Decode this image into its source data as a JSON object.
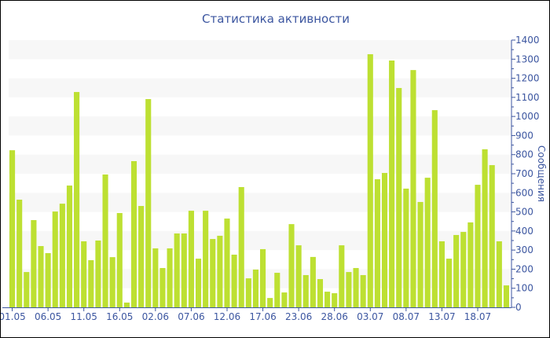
{
  "chart_data": {
    "type": "bar",
    "title": "Статистика активности",
    "ylabel": "Сообщения",
    "xlabel": "",
    "ylim": [
      0,
      1400
    ],
    "y_ticks": [
      0,
      100,
      200,
      300,
      400,
      500,
      600,
      700,
      800,
      900,
      1000,
      1100,
      1200,
      1300,
      1400
    ],
    "y_axis_side": "right",
    "grid": "alternating horizontal bands",
    "x_tick_labels": [
      "01.05",
      "06.05",
      "11.05",
      "16.05",
      "02.06",
      "07.06",
      "12.06",
      "17.06",
      "23.06",
      "28.06",
      "03.07",
      "08.07",
      "13.07",
      "18.07"
    ],
    "x_tick_every": 5,
    "values": [
      823,
      564,
      185,
      457,
      321,
      284,
      502,
      543,
      638,
      1128,
      346,
      247,
      350,
      696,
      263,
      494,
      25,
      766,
      531,
      1091,
      309,
      206,
      309,
      387,
      387,
      506,
      255,
      506,
      358,
      375,
      465,
      276,
      630,
      152,
      198,
      305,
      49,
      181,
      78,
      436,
      325,
      169,
      264,
      148,
      82,
      74,
      325,
      185,
      206,
      169,
      1326,
      671,
      704,
      1293,
      1149,
      622,
      1243,
      552,
      679,
      1033,
      346,
      255,
      379,
      395,
      445,
      642,
      828,
      745,
      346,
      115
    ],
    "colors": {
      "bar": "#bde032",
      "axis": "#3c56a0",
      "band": "#f7f7f7"
    }
  }
}
